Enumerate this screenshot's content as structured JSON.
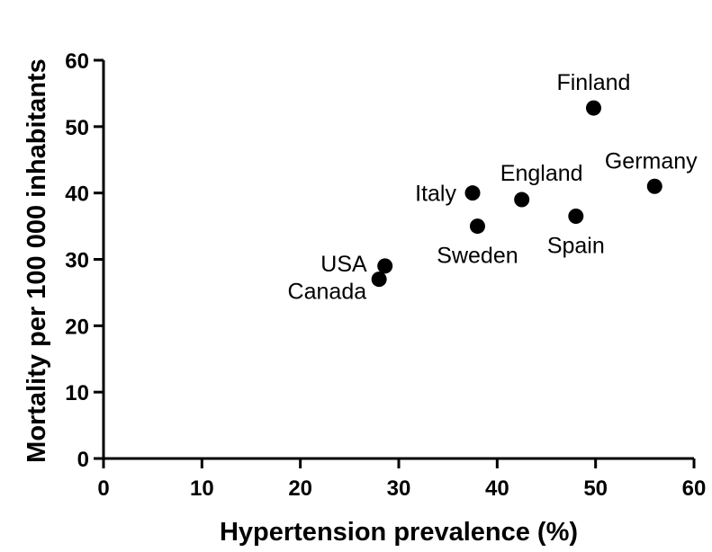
{
  "chart_data": {
    "type": "scatter",
    "title": "",
    "xlabel": "Hypertension prevalence (%)",
    "ylabel": "Mortality per 100 000 inhabitants",
    "xlim": [
      0,
      60
    ],
    "ylim": [
      0,
      60
    ],
    "xticks": [
      0,
      10,
      20,
      30,
      40,
      50,
      60
    ],
    "yticks": [
      0,
      10,
      20,
      30,
      40,
      50,
      60
    ],
    "grid": false,
    "points": [
      {
        "label": "Finland",
        "x": 49.8,
        "y": 52.8
      },
      {
        "label": "Germany",
        "x": 56.0,
        "y": 41.0
      },
      {
        "label": "Italy",
        "x": 37.5,
        "y": 40.0
      },
      {
        "label": "England",
        "x": 42.5,
        "y": 39.0
      },
      {
        "label": "Sweden",
        "x": 38.0,
        "y": 35.0
      },
      {
        "label": "Spain",
        "x": 48.0,
        "y": 36.5
      },
      {
        "label": "USA",
        "x": 28.6,
        "y": 29.0
      },
      {
        "label": "Canada",
        "x": 28.0,
        "y": 27.0
      }
    ],
    "colors": {
      "marker": "#000000",
      "axis": "#000000"
    }
  }
}
